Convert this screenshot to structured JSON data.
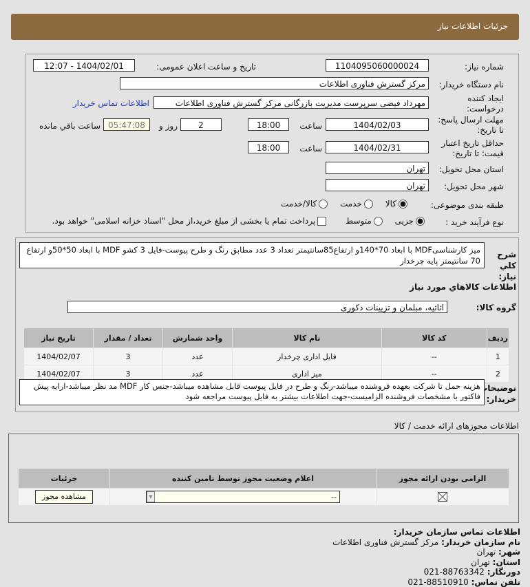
{
  "header": {
    "title": "جزئیات اطلاعات نیاز"
  },
  "form": {
    "need_number_label": "شماره نیاز:",
    "need_number": "1104095060000024",
    "announce_label": "تاریخ و ساعت اعلان عمومی:",
    "announce_value": "1404/02/01 - 12:07",
    "buyer_org_label": "نام دستگاه خریدار:",
    "buyer_org": "مرکز گسترش فناوری اطلاعات",
    "creator_label": "ایجاد کننده درخواست:",
    "creator": "مهرداد فیضی سرپرست مدیریت بازرگانی مرکز گسترش فناوری اطلاعات",
    "contact_link": "اطلاعات تماس خریدار",
    "reply_label": "مهلت ارسال پاسخ: تا تاریخ:",
    "reply_date": "1404/02/03",
    "time_label": "ساعت",
    "reply_time": "18:00",
    "days": "2",
    "days_label": "روز و",
    "remaining": "05:47:08",
    "remaining_label": "ساعت باقي مانده",
    "validity_label": "حداقل تاریخ اعتبار قیمت: تا تاریخ:",
    "validity_date": "1404/02/31",
    "validity_time": "18:00",
    "province_label": "استان محل تحویل:",
    "province": "تهران",
    "city_label": "شهر محل تحویل:",
    "city": "تهران",
    "category_label": "طبقه بندی موضوعی:",
    "category_options": [
      "کالا",
      "خدمت",
      "کالا/خدمت"
    ],
    "process_label": "نوع فرآیند خرید :",
    "process_options": [
      "جزیی",
      "متوسط"
    ],
    "payment_note": "پرداخت تمام یا بخشی از مبلغ خرید،از محل \"اسناد خزانه اسلامی\" خواهد بود."
  },
  "desc": {
    "label": "شرح کلي نياز:",
    "text": "میز کارشناسیMDF با ابعاد 70*140و ارتفاع85سانتیمتر تعداد 3 عدد مطابق رنگ و طرح پیوست-فایل 3 کشو MDF با ابعاد 50*50و ارتفاع 70 سانتیمتر پایه چرخدار"
  },
  "goods": {
    "title": "اطلاعات كالاهاي مورد نياز",
    "group_label": "گروه کالا:",
    "group": "اثاثیه، مبلمان و تزیینات دکوری",
    "columns": [
      "ردیف",
      "کد کالا",
      "نام کالا",
      "واحد شمارش",
      "تعداد / مقدار",
      "تاریخ نیاز"
    ],
    "rows": [
      [
        "1",
        "--",
        "فایل اداری چرخدار",
        "عدد",
        "3",
        "1404/02/07"
      ],
      [
        "2",
        "--",
        "میز اداری",
        "عدد",
        "3",
        "1404/02/07"
      ]
    ]
  },
  "notes": {
    "label": "توضیحات خریدار:",
    "text": "هزینه حمل تا شرکت بعهده فروشنده میباشد-رنگ و طرح در فایل پیوست قابل مشاهده میباشد-جنس کار MDF مد نظر میباشد-ارایه پیش فاکتور با مشخصات فروشنده الزامیست-جهت اطلاعات بیشتر به فایل پیوست مراجعه شود"
  },
  "permits": {
    "title": "اطلاعات مجوزهای ارائه خدمت / کالا",
    "columns": [
      "الزامی بودن ارائه مجوز",
      "اعلام وضعیت مجوز توسط تامین کننده",
      "جزئیات"
    ],
    "select_value": "--",
    "view_button": "مشاهده مجوز"
  },
  "contact": {
    "title": "اطلاعات تماس سازمان خریدار:",
    "org_label": "نام سازمان خریدار:",
    "org": "مرکز گسترش فناوری اطلاعات",
    "city_label": "شهر:",
    "city": "تهران",
    "province_label": "استان:",
    "province": "تهران",
    "fax_label": "دورنگار:",
    "fax": "021-88763342",
    "phone_label": "تلفن تماس:",
    "phone": "021-88510910"
  }
}
